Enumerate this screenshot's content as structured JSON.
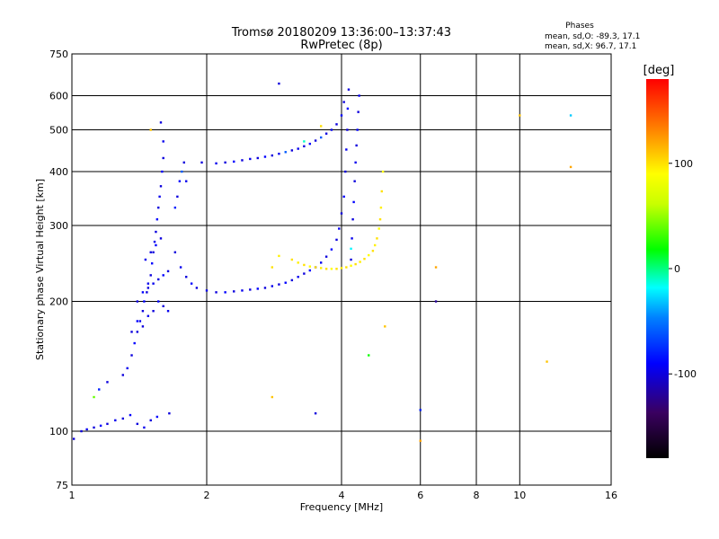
{
  "chart_data": {
    "type": "scatter",
    "title": "Tromsø 20180209 13:36:00–13:37:43",
    "subtitle": "RwPretec (8p)",
    "xlabel": "Frequency [MHz]",
    "ylabel": "Stationary phase Virtual Height [km]",
    "x_scale": "log",
    "y_scale": "log",
    "xlim": [
      1,
      16
    ],
    "ylim": [
      75,
      750
    ],
    "x_ticks": [
      1,
      2,
      4,
      6,
      8,
      10,
      16
    ],
    "x_tick_labels": [
      "1",
      "2",
      "4",
      "6",
      "8",
      "10",
      "16"
    ],
    "y_ticks": [
      75,
      100,
      200,
      300,
      400,
      500,
      600,
      750
    ],
    "y_tick_labels": [
      "75",
      "100",
      "200",
      "300",
      "400",
      "500",
      "600",
      "750"
    ],
    "grid": true,
    "phase_info": {
      "header": "Phases",
      "line_o": "mean, sd,O: -89.3, 17.1",
      "line_x": "mean, sd,X:  96.7, 17.1"
    },
    "colorbar": {
      "label": "[deg]",
      "range": [
        -180,
        180
      ],
      "ticks": [
        100,
        0,
        -100
      ],
      "tick_labels": [
        "100",
        "0",
        "-100"
      ],
      "colormap": "rainbow"
    },
    "series": [
      {
        "points": [
          [
            1.01,
            96,
            -100
          ],
          [
            1.05,
            100,
            -100
          ],
          [
            1.08,
            101,
            -95
          ],
          [
            1.12,
            102,
            -100
          ],
          [
            1.16,
            103,
            -90
          ],
          [
            1.2,
            104,
            -100
          ],
          [
            1.25,
            106,
            -95
          ],
          [
            1.3,
            107,
            -100
          ],
          [
            1.35,
            109,
            -90
          ],
          [
            1.4,
            104,
            -100
          ],
          [
            1.45,
            102,
            -95
          ],
          [
            1.5,
            106,
            -100
          ],
          [
            1.55,
            108,
            -90
          ],
          [
            1.3,
            135,
            -100
          ],
          [
            1.33,
            140,
            -95
          ],
          [
            1.36,
            150,
            -100
          ],
          [
            1.38,
            160,
            -90
          ],
          [
            1.4,
            170,
            -100
          ],
          [
            1.42,
            180,
            -95
          ],
          [
            1.44,
            190,
            -100
          ],
          [
            1.45,
            200,
            -90
          ],
          [
            1.47,
            210,
            -100
          ],
          [
            1.48,
            220,
            -95
          ],
          [
            1.5,
            230,
            -100
          ],
          [
            1.51,
            245,
            -90
          ],
          [
            1.52,
            260,
            -100
          ],
          [
            1.53,
            275,
            -95
          ],
          [
            1.54,
            290,
            -100
          ],
          [
            1.55,
            310,
            -90
          ],
          [
            1.56,
            330,
            -100
          ],
          [
            1.57,
            350,
            -95
          ],
          [
            1.58,
            370,
            -100
          ],
          [
            1.59,
            400,
            -90
          ],
          [
            1.6,
            430,
            -100
          ],
          [
            1.6,
            470,
            -95
          ],
          [
            1.58,
            520,
            -100
          ],
          [
            1.36,
            170,
            -100
          ],
          [
            1.4,
            180,
            -90
          ],
          [
            1.44,
            175,
            -100
          ],
          [
            1.48,
            185,
            -95
          ],
          [
            1.52,
            190,
            -100
          ],
          [
            1.56,
            200,
            -90
          ],
          [
            1.6,
            195,
            -100
          ],
          [
            1.64,
            190,
            -95
          ],
          [
            1.4,
            200,
            -100
          ],
          [
            1.44,
            210,
            -90
          ],
          [
            1.48,
            215,
            -100
          ],
          [
            1.52,
            220,
            -95
          ],
          [
            1.56,
            225,
            -100
          ],
          [
            1.6,
            230,
            -90
          ],
          [
            1.64,
            235,
            -100
          ],
          [
            1.46,
            250,
            -95
          ],
          [
            1.5,
            260,
            -100
          ],
          [
            1.54,
            270,
            -90
          ],
          [
            1.58,
            280,
            -100
          ],
          [
            1.7,
            260,
            -100
          ],
          [
            1.75,
            240,
            -95
          ],
          [
            1.8,
            228,
            -100
          ],
          [
            1.85,
            220,
            -90
          ],
          [
            1.9,
            215,
            -100
          ],
          [
            2.0,
            212,
            -95
          ],
          [
            2.1,
            210,
            -100
          ],
          [
            2.2,
            210,
            -90
          ],
          [
            2.3,
            211,
            -100
          ],
          [
            2.4,
            212,
            -95
          ],
          [
            2.5,
            213,
            -100
          ],
          [
            2.6,
            214,
            -90
          ],
          [
            2.7,
            215,
            -100
          ],
          [
            2.8,
            217,
            -95
          ],
          [
            2.9,
            219,
            -100
          ],
          [
            3.0,
            221,
            -90
          ],
          [
            3.1,
            224,
            -100
          ],
          [
            3.2,
            228,
            -95
          ],
          [
            3.3,
            232,
            -100
          ],
          [
            3.4,
            236,
            -90
          ],
          [
            3.5,
            240,
            -100
          ],
          [
            3.6,
            246,
            -95
          ],
          [
            3.7,
            254,
            -100
          ],
          [
            3.8,
            264,
            -90
          ],
          [
            3.9,
            278,
            -100
          ],
          [
            3.95,
            295,
            -95
          ],
          [
            4.0,
            320,
            -100
          ],
          [
            4.05,
            350,
            -90
          ],
          [
            4.08,
            400,
            -100
          ],
          [
            4.1,
            450,
            -95
          ],
          [
            4.12,
            500,
            -100
          ],
          [
            4.13,
            560,
            -90
          ],
          [
            4.15,
            620,
            -100
          ],
          [
            1.95,
            420,
            -100
          ],
          [
            2.1,
            418,
            -95
          ],
          [
            2.2,
            420,
            -100
          ],
          [
            2.3,
            422,
            -90
          ],
          [
            2.4,
            425,
            -100
          ],
          [
            2.5,
            428,
            -95
          ],
          [
            2.6,
            430,
            -100
          ],
          [
            2.7,
            433,
            -90
          ],
          [
            2.8,
            436,
            -100
          ],
          [
            2.9,
            440,
            -95
          ],
          [
            3.0,
            444,
            -60
          ],
          [
            3.1,
            448,
            -100
          ],
          [
            3.2,
            452,
            -95
          ],
          [
            3.3,
            458,
            -100
          ],
          [
            3.4,
            464,
            -90
          ],
          [
            3.5,
            472,
            -100
          ],
          [
            3.6,
            480,
            -60
          ],
          [
            3.7,
            490,
            -100
          ],
          [
            3.8,
            500,
            -95
          ],
          [
            3.9,
            515,
            -100
          ],
          [
            4.0,
            540,
            -90
          ],
          [
            4.05,
            580,
            -100
          ],
          [
            4.2,
            250,
            -100
          ],
          [
            4.22,
            280,
            -95
          ],
          [
            4.24,
            310,
            -100
          ],
          [
            4.26,
            340,
            -90
          ],
          [
            4.28,
            380,
            -100
          ],
          [
            4.3,
            420,
            -95
          ],
          [
            4.32,
            460,
            -100
          ],
          [
            4.34,
            500,
            -90
          ],
          [
            4.36,
            550,
            -100
          ],
          [
            4.38,
            600,
            -95
          ],
          [
            1.7,
            330,
            -80
          ],
          [
            1.72,
            350,
            -100
          ],
          [
            1.74,
            380,
            -90
          ],
          [
            1.76,
            400,
            -60
          ],
          [
            1.78,
            420,
            -100
          ],
          [
            1.8,
            380,
            -95
          ],
          [
            2.9,
            640,
            -100
          ],
          [
            1.2,
            130,
            -100
          ],
          [
            1.15,
            125,
            -80
          ],
          [
            6.0,
            112,
            -80
          ],
          [
            6.5,
            200,
            -120
          ],
          [
            3.5,
            110,
            -100
          ],
          [
            1.65,
            110,
            -100
          ]
        ],
        "color_value": "phase"
      },
      {
        "points": [
          [
            3.1,
            250,
            100
          ],
          [
            3.2,
            246,
            95
          ],
          [
            3.3,
            243,
            100
          ],
          [
            3.4,
            241,
            90
          ],
          [
            3.5,
            240,
            100
          ],
          [
            3.6,
            239,
            95
          ],
          [
            3.7,
            238,
            100
          ],
          [
            3.8,
            238,
            90
          ],
          [
            3.9,
            238,
            100
          ],
          [
            4.0,
            239,
            95
          ],
          [
            4.1,
            240,
            100
          ],
          [
            4.2,
            242,
            90
          ],
          [
            4.3,
            244,
            100
          ],
          [
            4.4,
            247,
            95
          ],
          [
            4.5,
            251,
            100
          ],
          [
            4.6,
            256,
            90
          ],
          [
            4.7,
            262,
            100
          ],
          [
            4.75,
            270,
            95
          ],
          [
            4.8,
            280,
            100
          ],
          [
            4.85,
            295,
            90
          ],
          [
            4.88,
            310,
            100
          ],
          [
            4.9,
            330,
            95
          ],
          [
            4.92,
            360,
            100
          ],
          [
            4.95,
            400,
            90
          ],
          [
            2.8,
            240,
            100
          ],
          [
            2.9,
            255,
            95
          ],
          [
            3.6,
            510,
            100
          ],
          [
            10.0,
            540,
            110
          ],
          [
            11.5,
            145,
            110
          ],
          [
            13.0,
            410,
            120
          ],
          [
            1.5,
            500,
            110
          ],
          [
            2.8,
            120,
            110
          ],
          [
            6.0,
            95,
            120
          ],
          [
            6.5,
            240,
            120
          ],
          [
            5.0,
            175,
            110
          ]
        ],
        "color_value": "phase"
      },
      {
        "points": [
          [
            1.12,
            120,
            40
          ],
          [
            4.6,
            150,
            20
          ],
          [
            13.0,
            540,
            -30
          ],
          [
            3.3,
            470,
            -10
          ],
          [
            4.2,
            265,
            -20
          ]
        ],
        "color_value": "phase"
      }
    ]
  }
}
